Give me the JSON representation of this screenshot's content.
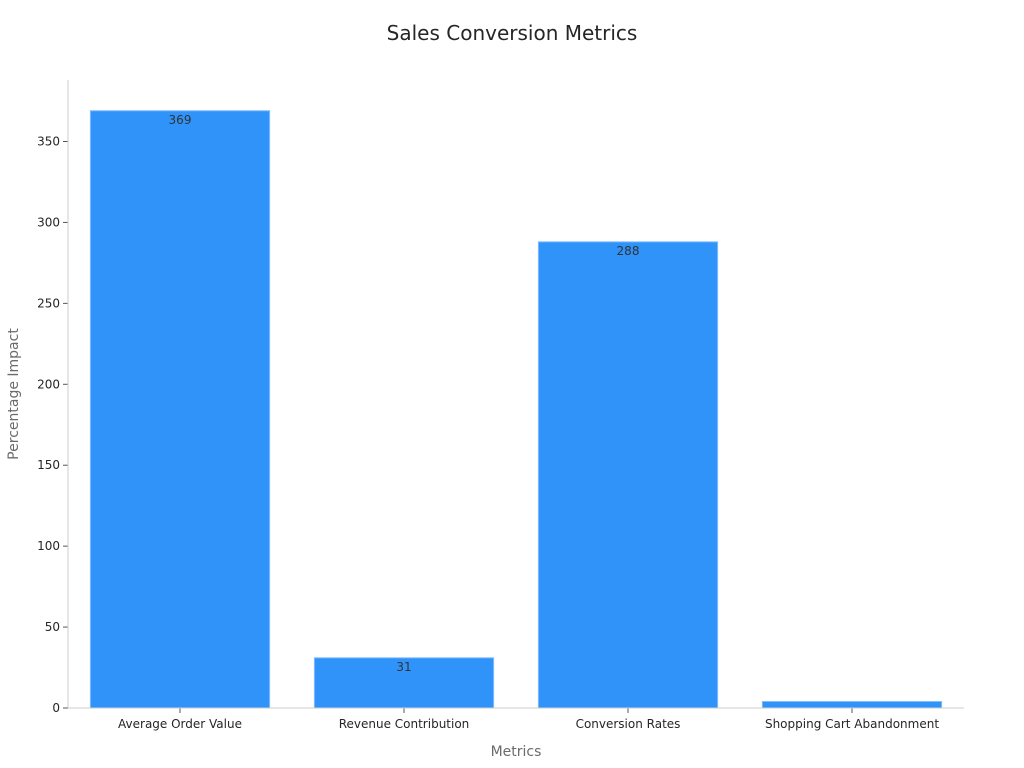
{
  "chart_data": {
    "type": "bar",
    "title": "Sales Conversion Metrics",
    "xlabel": "Metrics",
    "ylabel": "Percentage Impact",
    "categories": [
      "Average Order Value",
      "Revenue Contribution",
      "Conversion Rates",
      "Shopping Cart Abandonment"
    ],
    "values": [
      369,
      31,
      288,
      4
    ],
    "data_labels": [
      "369",
      "31",
      "288",
      ""
    ],
    "ylim": [
      0,
      388
    ],
    "yticks": [
      0,
      50,
      100,
      150,
      200,
      250,
      300,
      350
    ],
    "grid": false,
    "bar_color": "#2f93fa",
    "bar_edge_color": "#7fbdfc",
    "axis_color": "#cccccc"
  }
}
